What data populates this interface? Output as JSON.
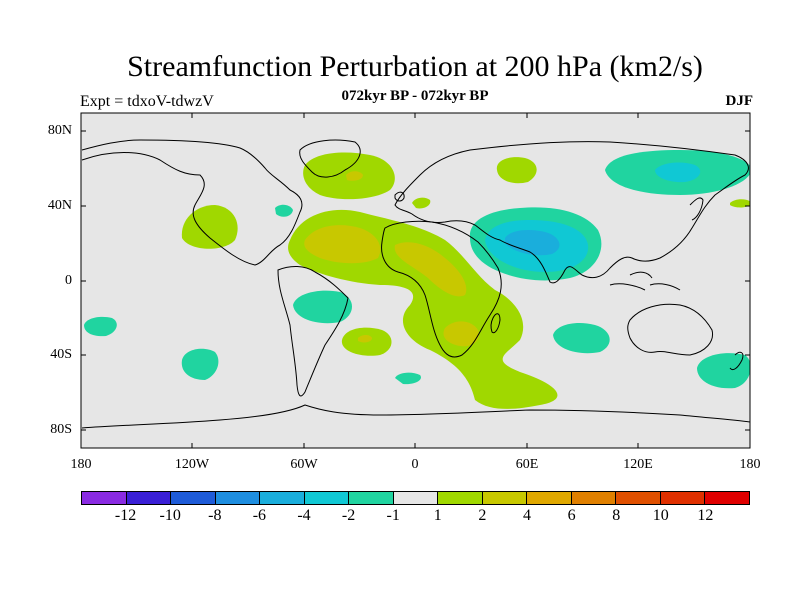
{
  "header": {
    "title": "Streamfunction Perturbation at 200 hPa (km2/s)",
    "subtitle": "072kyr BP - 072kyr BP",
    "left_string": "Expt = tdxoV-tdwzV",
    "right_string": "DJF"
  },
  "map": {
    "projection": "cylindrical equidistant",
    "lat_range": [
      -90,
      90
    ],
    "lon_range": [
      -180,
      180
    ],
    "background_color": "#e6e6e6",
    "lat_ticks": [
      "80N",
      "40N",
      "0",
      "40S",
      "80S"
    ],
    "lon_ticks": [
      "180",
      "120W",
      "60W",
      "0",
      "60E",
      "120E",
      "180"
    ]
  },
  "colorbar": {
    "colors": [
      "#8a2be2",
      "#3a1fd6",
      "#1e5bd8",
      "#1e8ee0",
      "#1aaedc",
      "#10c8d4",
      "#20d4a0",
      "#e6e6e6",
      "#a0d800",
      "#c8c800",
      "#e0a800",
      "#e08000",
      "#e05000",
      "#e03000",
      "#e00000"
    ],
    "labels": [
      "-12",
      "-10",
      "-8",
      "-6",
      "-4",
      "-2",
      "-1",
      "1",
      "2",
      "4",
      "6",
      "8",
      "10",
      "12"
    ]
  },
  "contours": {
    "levels_color": {
      "pos1": "#a0d800",
      "pos2": "#c8c800",
      "pos3": "#e0a800",
      "neg1": "#20d4a0",
      "neg2": "#10c8d4",
      "neg3": "#1aaedc"
    }
  }
}
